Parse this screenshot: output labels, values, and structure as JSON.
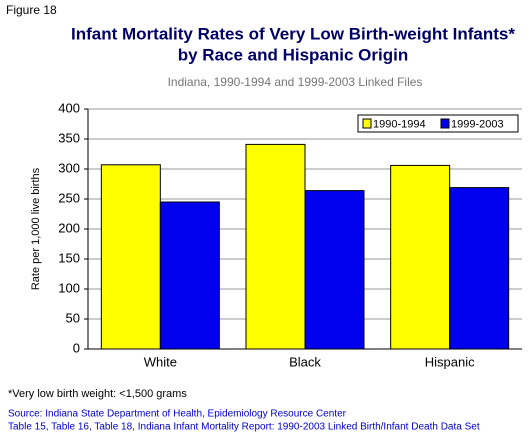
{
  "chart_data": {
    "type": "bar",
    "figure_label": "Figure 18",
    "title": [
      "Infant Mortality Rates of Very Low Birth-weight Infants*",
      "by Race and Hispanic Origin"
    ],
    "subtitle": "Indiana, 1990-1994 and 1999-2003 Linked Files",
    "y_label": "Rate per 1,000 live births",
    "categories": [
      "White",
      "Black",
      "Hispanic"
    ],
    "series": [
      {
        "name": "1990-1994",
        "color": "#ffff00",
        "values": [
          307,
          341,
          306
        ]
      },
      {
        "name": "1999-2003",
        "color": "#0000ee",
        "values": [
          245,
          264,
          269
        ]
      }
    ],
    "ylim": [
      0,
      400
    ],
    "yticks": [
      0,
      50,
      100,
      150,
      200,
      250,
      300,
      350,
      400
    ],
    "grid": true,
    "legend": "top-right",
    "footnote": "*Very low birth weight: <1,500 grams",
    "source": [
      "Source: Indiana State Department of Health, Epidemiology Resource Center",
      "Table 15, Table 16, Table 18, Indiana Infant Mortality Report: 1990-2003 Linked Birth/Infant Death Data Set"
    ]
  }
}
